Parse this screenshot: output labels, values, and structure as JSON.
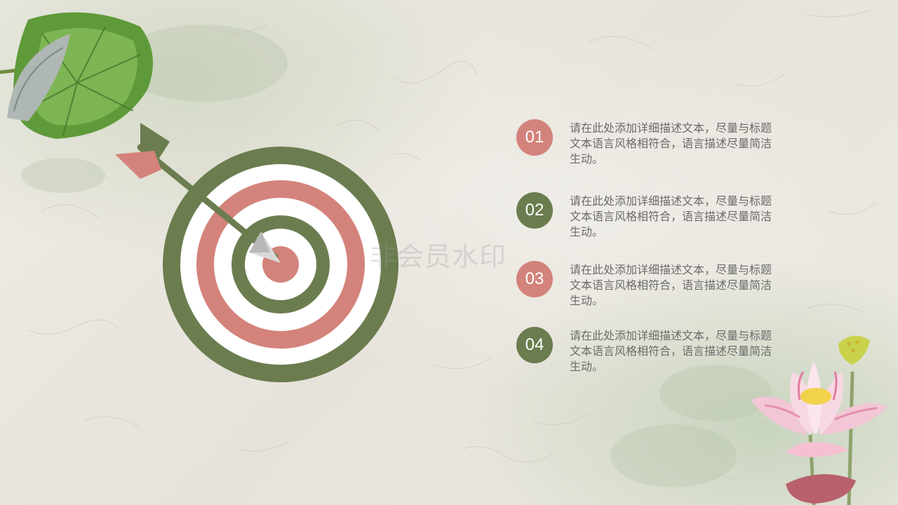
{
  "colors": {
    "green": "#6b7d4f",
    "pink": "#d3837b",
    "white": "#ffffff",
    "text": "#6b6b6b"
  },
  "watermark": "非会员水印",
  "items": [
    {
      "number": "01",
      "text": "请在此处添加详细描述文本，尽量与标题文本语言风格相符合，语言描述尽量简洁生动。",
      "color": "#d3837b"
    },
    {
      "number": "02",
      "text": "请在此处添加详细描述文本，尽量与标题文本语言风格相符合，语言描述尽量简洁生动。",
      "color": "#6b7d4f"
    },
    {
      "number": "03",
      "text": "请在此处添加详细描述文本，尽量与标题文本语言风格相符合，语言描述尽量简洁生动。",
      "color": "#d3837b"
    },
    {
      "number": "04",
      "text": "请在此处添加详细描述文本，尽量与标题文本语言风格相符合，语言描述尽量简洁生动。",
      "color": "#6b7d4f"
    }
  ],
  "icons": [
    "lotus-leaf-icon",
    "target-icon",
    "arrow-icon",
    "lotus-flower-icon"
  ]
}
